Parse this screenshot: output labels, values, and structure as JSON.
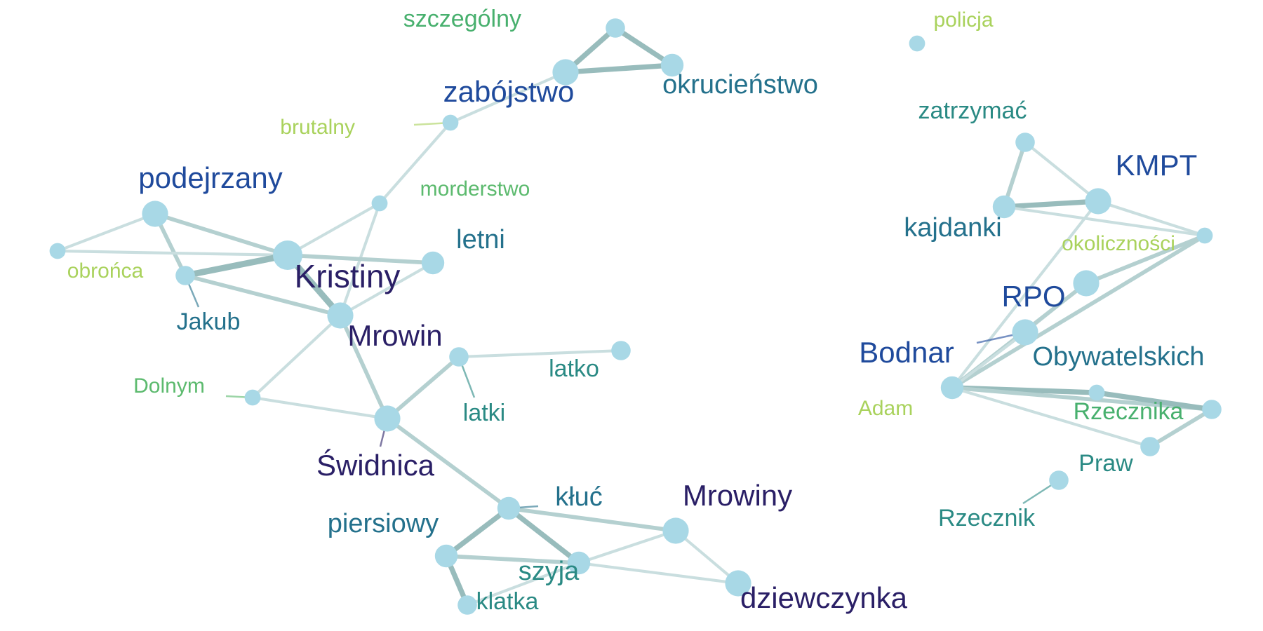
{
  "graph": {
    "type": "word-cooccurrence-network",
    "node_color": "#a8d8e6",
    "nodes": [
      {
        "id": "szczegolny",
        "label": "szczególny",
        "weight": 2,
        "color": "#48b06e"
      },
      {
        "id": "zabojstwo",
        "label": "zabójstwo",
        "weight": 4,
        "color": "#1f4a9c"
      },
      {
        "id": "okrucienstwo",
        "label": "okrucieństwo",
        "weight": 3,
        "color": "#24718c"
      },
      {
        "id": "brutalny",
        "label": "brutalny",
        "weight": 1,
        "color": "#a9d25c"
      },
      {
        "id": "morderstwo",
        "label": "morderstwo",
        "weight": 1,
        "color": "#5cba6e"
      },
      {
        "id": "podejrzany",
        "label": "podejrzany",
        "weight": 4,
        "color": "#1f4a9c"
      },
      {
        "id": "obronca",
        "label": "obrońca",
        "weight": 1,
        "color": "#a9d25c"
      },
      {
        "id": "jakub",
        "label": "Jakub",
        "weight": 2,
        "color": "#24718c"
      },
      {
        "id": "kristiny",
        "label": "Kristiny",
        "weight": 5,
        "color": "#2a1f66"
      },
      {
        "id": "letni",
        "label": "letni",
        "weight": 3,
        "color": "#24718c"
      },
      {
        "id": "mrowin",
        "label": "Mrowin",
        "weight": 4,
        "color": "#2a1f66"
      },
      {
        "id": "latko",
        "label": "latko",
        "weight": 2,
        "color": "#2a8a84"
      },
      {
        "id": "latki",
        "label": "latki",
        "weight": 2,
        "color": "#2a8a84"
      },
      {
        "id": "dolnym",
        "label": "Dolnym",
        "weight": 1,
        "color": "#5cba6e"
      },
      {
        "id": "swidnica",
        "label": "Świdnica",
        "weight": 4,
        "color": "#2a1f66"
      },
      {
        "id": "kluc",
        "label": "kłuć",
        "weight": 3,
        "color": "#24718c"
      },
      {
        "id": "mrowiny",
        "label": "Mrowiny",
        "weight": 4,
        "color": "#2a1f66"
      },
      {
        "id": "piersiowy",
        "label": "piersiowy",
        "weight": 3,
        "color": "#24718c"
      },
      {
        "id": "szyja",
        "label": "szyja",
        "weight": 3,
        "color": "#2a8a84"
      },
      {
        "id": "klatka",
        "label": "klatka",
        "weight": 2,
        "color": "#2a8a84"
      },
      {
        "id": "dziewczynka",
        "label": "dziewczynka",
        "weight": 4,
        "color": "#2a1f66"
      },
      {
        "id": "policja",
        "label": "policja",
        "weight": 1,
        "color": "#a9d25c"
      },
      {
        "id": "zatrzymac",
        "label": "zatrzymać",
        "weight": 2,
        "color": "#2a8a84"
      },
      {
        "id": "kmpt",
        "label": "KMPT",
        "weight": 4,
        "color": "#1f4a9c"
      },
      {
        "id": "kajdanki",
        "label": "kajdanki",
        "weight": 3,
        "color": "#24718c"
      },
      {
        "id": "okolicznosci",
        "label": "okoliczności",
        "weight": 1,
        "color": "#a9d25c"
      },
      {
        "id": "rpo",
        "label": "RPO",
        "weight": 4,
        "color": "#1f4a9c"
      },
      {
        "id": "bodnar",
        "label": "Bodnar",
        "weight": 4,
        "color": "#1f4a9c"
      },
      {
        "id": "obywatelskich",
        "label": "Obywatelskich",
        "weight": 3,
        "color": "#24718c"
      },
      {
        "id": "adam",
        "label": "Adam",
        "weight": 1,
        "color": "#a9d25c"
      },
      {
        "id": "rzecznika",
        "label": "Rzecznika",
        "weight": 2,
        "color": "#48b06e"
      },
      {
        "id": "praw",
        "label": "Praw",
        "weight": 2,
        "color": "#2a8a84"
      },
      {
        "id": "rzecznik",
        "label": "Rzecznik",
        "weight": 2,
        "color": "#2a8a84"
      }
    ],
    "edges": [
      {
        "source": "szczegolny",
        "target": "zabojstwo",
        "weight": 3
      },
      {
        "source": "szczegolny",
        "target": "okrucienstwo",
        "weight": 3
      },
      {
        "source": "zabojstwo",
        "target": "okrucienstwo",
        "weight": 3
      },
      {
        "source": "zabojstwo",
        "target": "brutalny",
        "weight": 1
      },
      {
        "source": "brutalny",
        "target": "morderstwo",
        "weight": 1
      },
      {
        "source": "morderstwo",
        "target": "kristiny",
        "weight": 1
      },
      {
        "source": "morderstwo",
        "target": "mrowin",
        "weight": 1
      },
      {
        "source": "podejrzany",
        "target": "obronca",
        "weight": 1
      },
      {
        "source": "podejrzany",
        "target": "jakub",
        "weight": 2
      },
      {
        "source": "podejrzany",
        "target": "kristiny",
        "weight": 2
      },
      {
        "source": "obronca",
        "target": "kristiny",
        "weight": 1
      },
      {
        "source": "jakub",
        "target": "kristiny",
        "weight": 4
      },
      {
        "source": "jakub",
        "target": "mrowin",
        "weight": 2
      },
      {
        "source": "kristiny",
        "target": "letni",
        "weight": 2
      },
      {
        "source": "kristiny",
        "target": "mrowin",
        "weight": 4
      },
      {
        "source": "letni",
        "target": "mrowin",
        "weight": 1
      },
      {
        "source": "mrowin",
        "target": "dolnym",
        "weight": 1
      },
      {
        "source": "mrowin",
        "target": "swidnica",
        "weight": 2
      },
      {
        "source": "dolnym",
        "target": "swidnica",
        "weight": 1
      },
      {
        "source": "swidnica",
        "target": "latki",
        "weight": 2
      },
      {
        "source": "latki",
        "target": "latko",
        "weight": 1
      },
      {
        "source": "swidnica",
        "target": "kluc",
        "weight": 2
      },
      {
        "source": "kluc",
        "target": "piersiowy",
        "weight": 3
      },
      {
        "source": "kluc",
        "target": "szyja",
        "weight": 3
      },
      {
        "source": "kluc",
        "target": "mrowiny",
        "weight": 2
      },
      {
        "source": "piersiowy",
        "target": "szyja",
        "weight": 2
      },
      {
        "source": "piersiowy",
        "target": "klatka",
        "weight": 3
      },
      {
        "source": "szyja",
        "target": "klatka",
        "weight": 1
      },
      {
        "source": "szyja",
        "target": "mrowiny",
        "weight": 1
      },
      {
        "source": "szyja",
        "target": "dziewczynka",
        "weight": 1
      },
      {
        "source": "mrowiny",
        "target": "dziewczynka",
        "weight": 1
      },
      {
        "source": "zatrzymac",
        "target": "kajdanki",
        "weight": 2
      },
      {
        "source": "zatrzymac",
        "target": "kmpt",
        "weight": 1
      },
      {
        "source": "kajdanki",
        "target": "kmpt",
        "weight": 3
      },
      {
        "source": "kajdanki",
        "target": "okolicznosci",
        "weight": 1
      },
      {
        "source": "kmpt",
        "target": "okolicznosci",
        "weight": 1
      },
      {
        "source": "kmpt",
        "target": "obywatelskich",
        "weight": 1
      },
      {
        "source": "okolicznosci",
        "target": "rpo",
        "weight": 2
      },
      {
        "source": "okolicznosci",
        "target": "obywatelskich",
        "weight": 2
      },
      {
        "source": "rpo",
        "target": "bodnar",
        "weight": 1
      },
      {
        "source": "rpo",
        "target": "obywatelskich",
        "weight": 2
      },
      {
        "source": "bodnar",
        "target": "obywatelskich",
        "weight": 1
      },
      {
        "source": "obywatelskich",
        "target": "adam",
        "weight": 3
      },
      {
        "source": "obywatelskich",
        "target": "rzecznika",
        "weight": 2
      },
      {
        "source": "obywatelskich",
        "target": "praw",
        "weight": 1
      },
      {
        "source": "adam",
        "target": "rzecznika",
        "weight": 3
      },
      {
        "source": "rzecznika",
        "target": "praw",
        "weight": 2
      }
    ]
  }
}
